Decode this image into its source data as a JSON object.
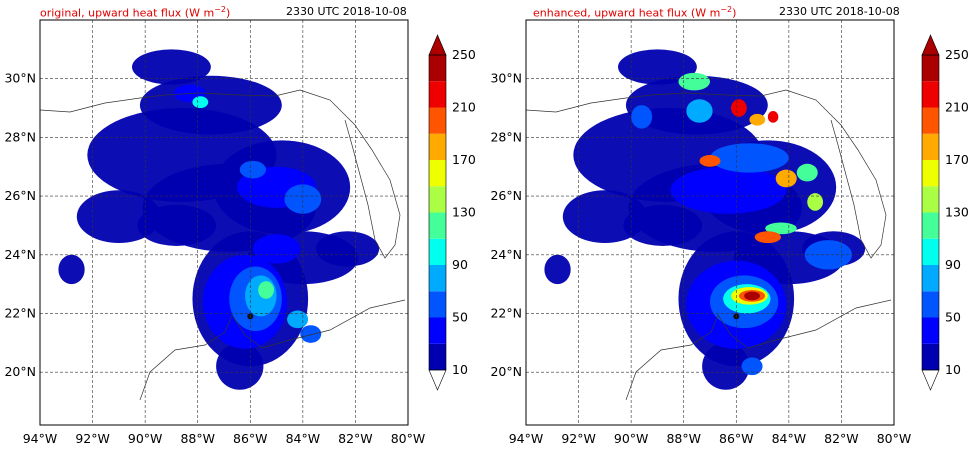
{
  "panels": [
    {
      "title_left": "original, upward heat flux (W m",
      "title_sup": "−2",
      "title_left_end": ")",
      "time": "2330 UTC 2018-10-08",
      "variant": "original"
    },
    {
      "title_left": "enhanced, upward heat flux (W m",
      "title_sup": "−2",
      "title_left_end": ")",
      "time": "2330 UTC 2018-10-08",
      "variant": "enhanced"
    }
  ],
  "axes": {
    "lon_ticks": [
      "94°W",
      "92°W",
      "90°W",
      "88°W",
      "86°W",
      "84°W",
      "82°W",
      "80°W"
    ],
    "lat_ticks": [
      "30°N",
      "28°N",
      "26°N",
      "24°N",
      "22°N",
      "20°N"
    ],
    "lon_range": [
      -94,
      -80
    ],
    "lat_range": [
      18.2,
      32.0
    ]
  },
  "colorbar": {
    "levels": [
      10,
      30,
      50,
      70,
      90,
      110,
      130,
      150,
      170,
      190,
      210,
      230,
      250
    ],
    "tick_labels": [
      "10",
      "50",
      "90",
      "130",
      "170",
      "210",
      "250"
    ],
    "colors": [
      "#0000b0",
      "#0000ff",
      "#0055ff",
      "#00aaff",
      "#00ffee",
      "#44ff99",
      "#aaff44",
      "#eeff00",
      "#ffaa00",
      "#ff5500",
      "#ee0000",
      "#aa0000"
    ],
    "extend": "both"
  }
}
